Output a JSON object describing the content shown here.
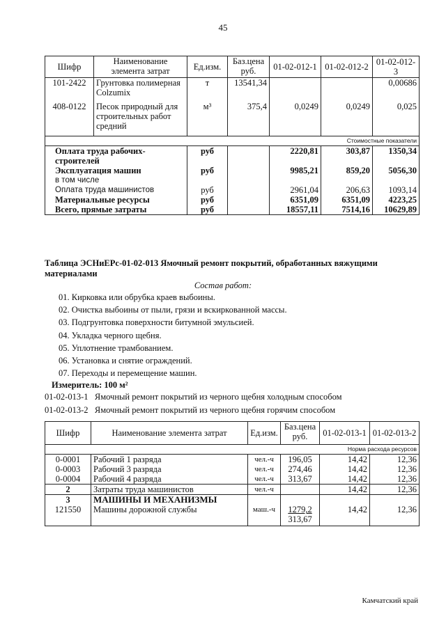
{
  "page_number": "45",
  "table1": {
    "headers": [
      "Шифр",
      "Наименование элемента затрат",
      "Ед.изм.",
      "Баз.цена руб.",
      "01-02-012-1",
      "01-02-012-2",
      "01-02-012-3"
    ],
    "rows": [
      {
        "code": "101-2422",
        "name": "Грунтовка полимерная Colzumix",
        "unit": "т",
        "price": "13541,34",
        "v1": "",
        "v2": "",
        "v3": "0,00686"
      },
      {
        "code": "408-0122",
        "name": "Песок природный для строительных работ средний",
        "unit": "м³",
        "price": "375,4",
        "v1": "0,0249",
        "v2": "0,0249",
        "v3": "0,025"
      }
    ],
    "section": "Стоимостные показатели",
    "cost_rows": [
      {
        "name": "Оплата труда рабочих-строителей",
        "unit": "руб",
        "v1": "2220,81",
        "v2": "303,87",
        "v3": "1350,34",
        "bold": true
      },
      {
        "name": "Эксплуатация машин",
        "unit": "руб",
        "v1": "9985,21",
        "v2": "859,20",
        "v3": "5056,30",
        "bold": true
      },
      {
        "name": "в том числе",
        "unit": "",
        "v1": "",
        "v2": "",
        "v3": "",
        "bold": false
      },
      {
        "name": "Оплата труда машинистов",
        "unit": "руб",
        "v1": "2961,04",
        "v2": "206,63",
        "v3": "1093,14",
        "bold": false
      },
      {
        "name": "Материальные ресурсы",
        "unit": "руб",
        "v1": "6351,09",
        "v2": "6351,09",
        "v3": "4223,25",
        "bold": true
      },
      {
        "name": "Всего, прямые затраты",
        "unit": "руб",
        "v1": "18557,11",
        "v2": "7514,16",
        "v3": "10629,89",
        "bold": true
      }
    ]
  },
  "table2_title": "Таблица  ЭСНиЕРс-01-02-013  Ямочный ремонт покрытий, обработанных вяжущими материалами",
  "work_title": "Состав работ:",
  "work_items": [
    "01. Кирковка или обрубка краев выбоины.",
    "02. Очистка выбоины от пыли, грязи и вскиркованной массы.",
    "03. Подгрунтовка поверхности битумной эмульсией.",
    "04. Укладка черного щебня.",
    "05. Уплотнение трамбованием.",
    "06. Установка и снятие ограждений.",
    "07. Переходы и перемещение машин."
  ],
  "measure": "Измеритель: 100 м²",
  "variants": [
    "01-02-013-1   Ямочный ремонт покрытий из черного щебня холодным способом",
    "01-02-013-2   Ямочный ремонт покрытий из черного щебня горячим способом"
  ],
  "table2": {
    "headers": [
      "Шифр",
      "Наименование элемента затрат",
      "Ед.изм.",
      "Баз.цена руб.",
      "01-02-013-1",
      "01-02-013-2"
    ],
    "section": "Норма расхода ресурсов",
    "rows": [
      {
        "code": "0-0001",
        "name": "Рабочий 1 разряда",
        "unit": "чел.-ч",
        "price": "196,05",
        "v1": "14,42",
        "v2": "12,36"
      },
      {
        "code": "0-0003",
        "name": "Рабочий 3 разряда",
        "unit": "чел.-ч",
        "price": "274,46",
        "v1": "14,42",
        "v2": "12,36"
      },
      {
        "code": "0-0004",
        "name": "Рабочий 4 разряда",
        "unit": "чел.-ч",
        "price": "313,67",
        "v1": "14,42",
        "v2": "12,36"
      },
      {
        "code": "2",
        "name": "Затраты труда машинистов",
        "unit": "чел.-ч",
        "price": "",
        "v1": "14,42",
        "v2": "12,36"
      }
    ],
    "group": {
      "code": "3",
      "name": "МАШИНЫ И МЕХАНИЗМЫ"
    },
    "last": {
      "code": "121550",
      "name": "Машины дорожной службы",
      "unit": "маш.-ч",
      "price": "1279,2",
      "price2": "313,67",
      "v1": "14,42",
      "v2": "12,36"
    }
  },
  "footer": "Камчатский край"
}
